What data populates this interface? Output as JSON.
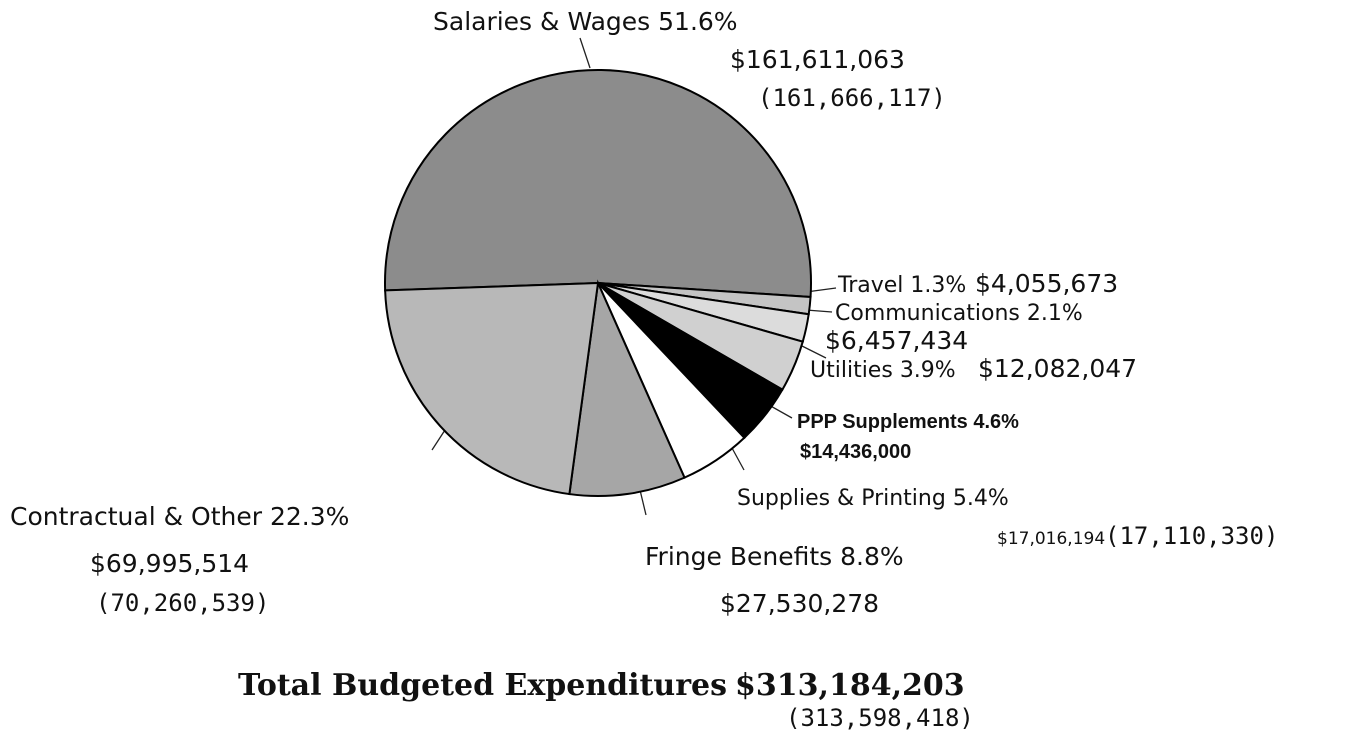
{
  "chart_data": {
    "type": "pie",
    "categories": [
      "Salaries & Wages",
      "Travel",
      "Communications",
      "Utilities",
      "PPP Supplements",
      "Supplies & Printing",
      "Fringe Benefits",
      "Contractual & Other"
    ],
    "values": [
      51.6,
      1.3,
      2.1,
      3.9,
      4.6,
      5.4,
      8.8,
      22.3
    ],
    "value_labels": [
      "51.6%",
      "1.3%",
      "2.1%",
      "3.9%",
      "4.6%",
      "5.4%",
      "8.8%",
      "22.3%"
    ],
    "amounts": [
      "$161,611,063",
      "$4,055,673",
      "$6,457,434",
      "$12,082,047",
      "$14,436,000",
      "$17,016,194",
      "$27,530,278",
      "$69,995,514"
    ],
    "prior_amounts": [
      "(161,666,117)",
      null,
      null,
      null,
      null,
      "(17,110,330)",
      null,
      "(70,260,539)"
    ],
    "colors": [
      "#8c8c8c",
      "#c4c4c4",
      "#dcdcdc",
      "#d0d0d0",
      "#000000",
      "#ffffff",
      "#a6a6a6",
      "#b8b8b8"
    ],
    "total_label": "Total Budgeted Expenditures",
    "total_amount": "$313,184,203",
    "total_prior": "(313,598,418)"
  }
}
